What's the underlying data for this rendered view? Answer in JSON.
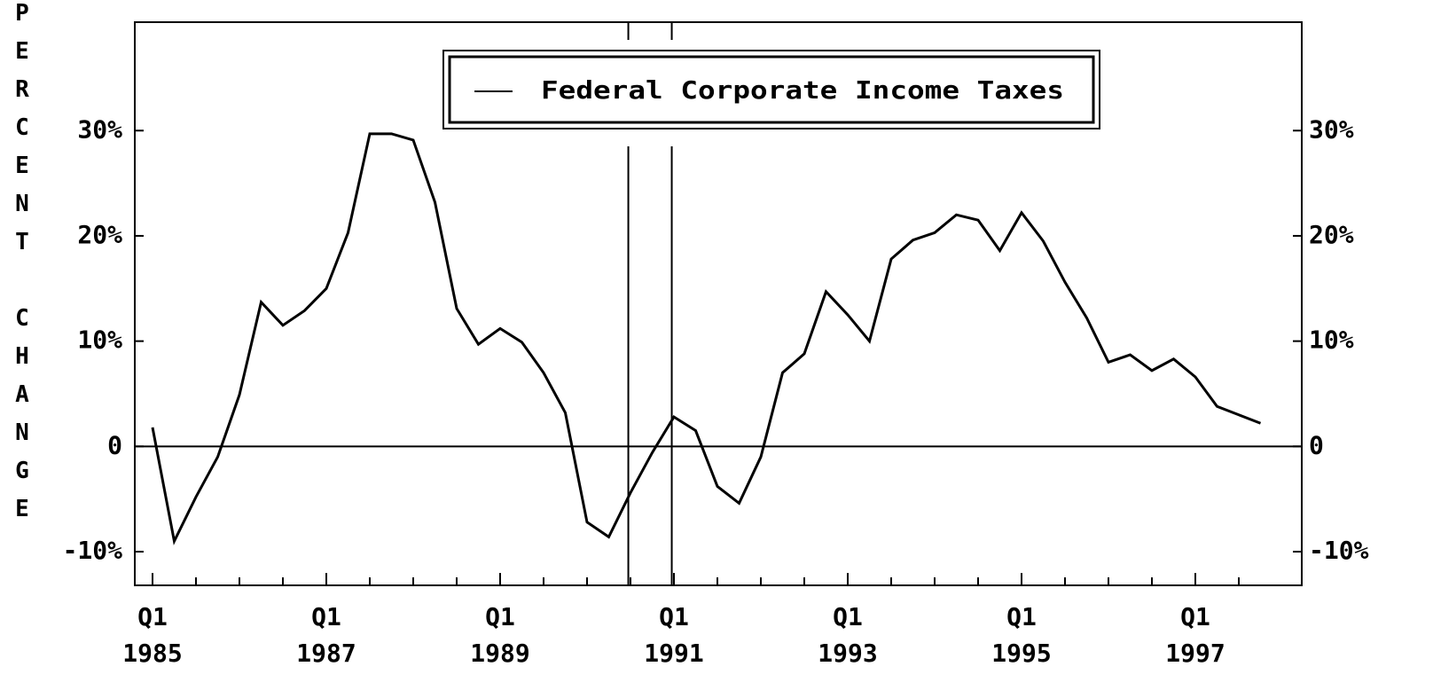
{
  "chart_data": {
    "type": "line",
    "y_label": "PERCENT CHANGE",
    "categories": [
      "Q1 1985",
      null,
      null,
      null,
      null,
      null,
      null,
      null,
      "Q1 1987",
      null,
      null,
      null,
      null,
      null,
      null,
      null,
      "Q1 1989",
      null,
      null,
      null,
      null,
      null,
      null,
      null,
      "Q1 1991",
      null,
      null,
      null,
      null,
      null,
      null,
      null,
      "Q1 1993",
      null,
      null,
      null,
      null,
      null,
      null,
      null,
      "Q1 1995",
      null,
      null,
      null,
      null,
      null,
      null,
      null,
      "Q1 1997",
      null,
      null,
      null
    ],
    "series": [
      {
        "name": "Federal Corporate Income Taxes",
        "color": "#000000",
        "values": [
          1.8,
          -9.0,
          -4.8,
          -1.0,
          4.9,
          13.7,
          11.5,
          12.9,
          15.0,
          20.3,
          29.7,
          29.7,
          29.1,
          23.2,
          13.1,
          9.7,
          11.2,
          9.9,
          7.0,
          3.2,
          -7.2,
          -8.6,
          -4.4,
          -0.6,
          2.8,
          1.5,
          -3.8,
          -5.4,
          -1.0,
          7.0,
          8.8,
          14.7,
          12.5,
          10.0,
          17.8,
          19.6,
          20.3,
          22.0,
          21.5,
          18.6,
          22.2,
          19.5,
          15.6,
          12.2,
          8.0,
          8.7,
          7.2,
          8.3,
          6.6,
          3.8,
          3.0,
          2.2
        ]
      }
    ],
    "recession_lines": [
      21.9,
      23.9
    ],
    "ylim": [
      -13.2,
      40.3
    ],
    "yticks": [
      {
        "value": -10,
        "label": "-10%"
      },
      0,
      {
        "value": 10,
        "label": "10%"
      },
      {
        "value": 20,
        "label": "20%"
      },
      {
        "value": 30,
        "label": "30%"
      }
    ],
    "zero_line": true,
    "legend": "top"
  }
}
